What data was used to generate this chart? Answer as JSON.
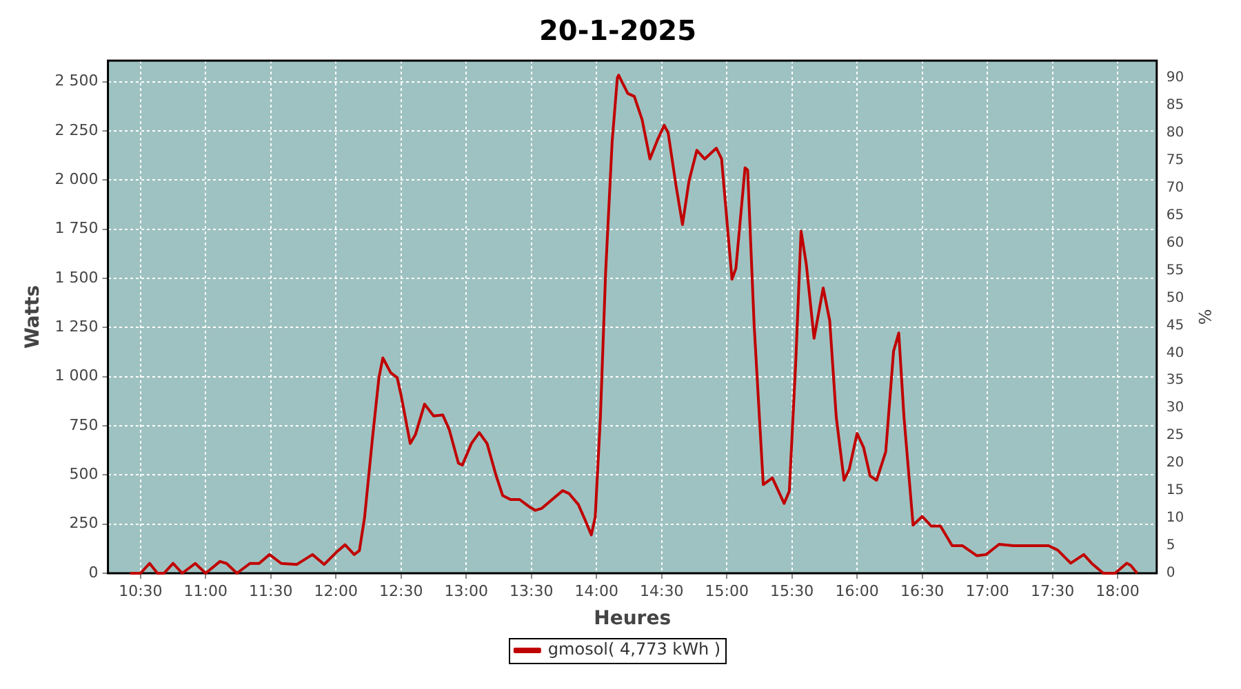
{
  "chart_data": {
    "type": "line",
    "title": "20-1-2025",
    "xlabel": "Heures",
    "ylabel": "Watts",
    "y2label": "%",
    "xlim": [
      10.25,
      18.3
    ],
    "xticks": [
      {
        "value": 10.5,
        "label": "10:30"
      },
      {
        "value": 11,
        "label": "11:00"
      },
      {
        "value": 11.5,
        "label": "11:30"
      },
      {
        "value": 12,
        "label": "12:00"
      },
      {
        "value": 12.5,
        "label": "12:30"
      },
      {
        "value": 13,
        "label": "13:00"
      },
      {
        "value": 13.5,
        "label": "13:30"
      },
      {
        "value": 14,
        "label": "14:00"
      },
      {
        "value": 14.5,
        "label": "14:30"
      },
      {
        "value": 15,
        "label": "15:00"
      },
      {
        "value": 15.5,
        "label": "15:30"
      },
      {
        "value": 16,
        "label": "16:00"
      },
      {
        "value": 16.5,
        "label": "16:30"
      },
      {
        "value": 17,
        "label": "17:00"
      },
      {
        "value": 17.5,
        "label": "17:30"
      },
      {
        "value": 18,
        "label": "18:00"
      }
    ],
    "ylim": [
      0,
      2607
    ],
    "yticks": [
      0,
      250,
      500,
      750,
      {
        "value": 1000,
        "label": "1 000"
      },
      {
        "value": 1250,
        "label": "1 250"
      },
      {
        "value": 1500,
        "label": "1 500"
      },
      {
        "value": 1750,
        "label": "1 750"
      },
      {
        "value": 2000,
        "label": "2 000"
      },
      {
        "value": 2250,
        "label": "2 250"
      },
      {
        "value": 2500,
        "label": "2 500"
      }
    ],
    "y2lim": [
      0,
      93.1
    ],
    "y2ticks": [
      0,
      5,
      10,
      15,
      20,
      25,
      30,
      35,
      40,
      45,
      50,
      55,
      60,
      65,
      70,
      75,
      80,
      85,
      90
    ],
    "grid": true,
    "legend": "bottom",
    "series": [
      {
        "name": "gmosol( 4,773 kWh )",
        "color": "#c00000",
        "x": [
          10.42,
          10.5,
          10.57,
          10.63,
          10.68,
          10.75,
          10.82,
          10.92,
          11.0,
          11.11,
          11.16,
          11.24,
          11.34,
          11.41,
          11.49,
          11.58,
          11.7,
          11.82,
          11.91,
          12.0,
          12.07,
          12.14,
          12.18,
          12.22,
          12.28,
          12.33,
          12.36,
          12.42,
          12.47,
          12.5,
          12.57,
          12.61,
          12.68,
          12.75,
          12.82,
          12.87,
          12.94,
          12.97,
          13.04,
          13.1,
          13.16,
          13.23,
          13.28,
          13.34,
          13.41,
          13.48,
          13.53,
          13.58,
          13.74,
          13.79,
          13.86,
          13.91,
          13.96,
          13.99,
          14.03,
          14.07,
          14.12,
          14.16,
          14.17,
          14.24,
          14.29,
          14.35,
          14.41,
          14.47,
          14.52,
          14.55,
          14.61,
          14.66,
          14.71,
          14.77,
          14.83,
          14.92,
          14.96,
          15.04,
          15.07,
          15.14,
          15.16,
          15.21,
          15.28,
          15.35,
          15.44,
          15.48,
          15.53,
          15.57,
          15.61,
          15.67,
          15.74,
          15.79,
          15.84,
          15.9,
          15.94,
          16.0,
          16.05,
          16.1,
          16.15,
          16.22,
          16.28,
          16.32,
          16.36,
          16.43,
          16.5,
          16.57,
          16.64,
          16.73,
          16.81,
          16.92,
          16.99,
          17.09,
          17.2,
          17.47,
          17.54,
          17.64,
          17.74,
          17.8,
          17.89,
          17.98,
          18.07,
          18.1,
          18.15
        ],
        "values": [
          0,
          0,
          50,
          0,
          0,
          50,
          0,
          50,
          0,
          60,
          50,
          0,
          50,
          50,
          95,
          50,
          45,
          95,
          45,
          105,
          145,
          95,
          115,
          285,
          685,
          995,
          1095,
          1020,
          995,
          905,
          660,
          705,
          860,
          800,
          805,
          730,
          560,
          550,
          660,
          715,
          660,
          495,
          395,
          375,
          375,
          340,
          320,
          330,
          420,
          405,
          350,
          275,
          195,
          285,
          795,
          1530,
          2195,
          2520,
          2533,
          2440,
          2425,
          2307,
          2107,
          2207,
          2278,
          2240,
          1973,
          1773,
          1995,
          2151,
          2107,
          2162,
          2107,
          1495,
          1551,
          2062,
          2051,
          1262,
          451,
          485,
          355,
          418,
          1085,
          1740,
          1573,
          1195,
          1451,
          1285,
          795,
          473,
          529,
          711,
          640,
          495,
          473,
          618,
          1129,
          1222,
          795,
          245,
          289,
          240,
          240,
          140,
          140,
          89,
          95,
          147,
          140,
          140,
          118,
          51,
          95,
          51,
          0,
          0,
          51,
          40,
          0
        ]
      }
    ]
  }
}
